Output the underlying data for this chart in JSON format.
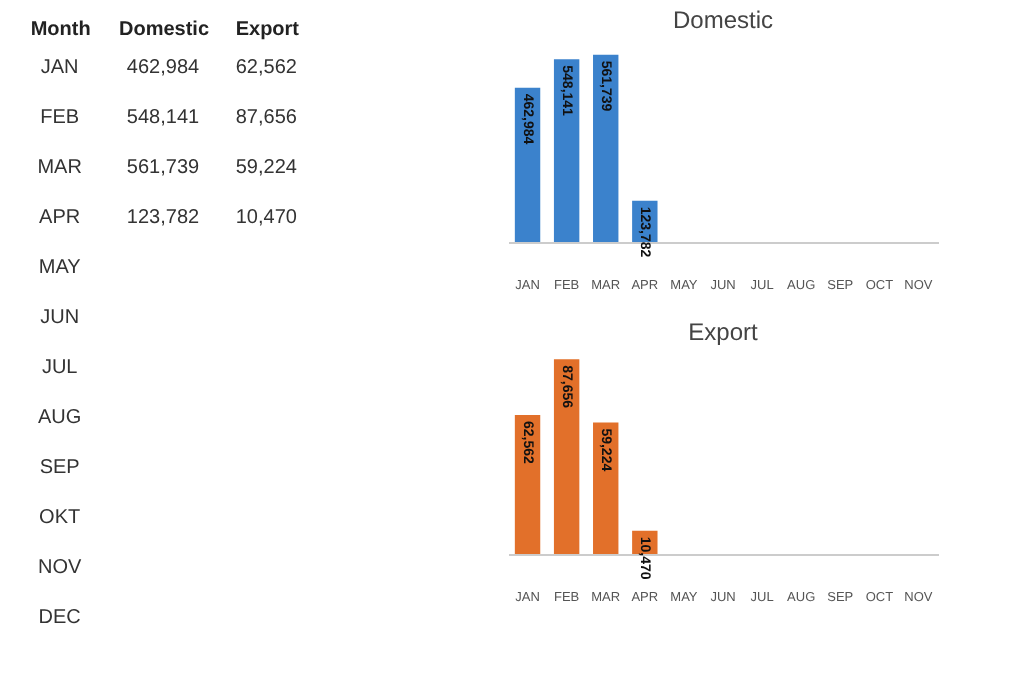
{
  "chart_data": [
    {
      "type": "other",
      "xlabel": "Month",
      "categories": [
        "JAN",
        "FEB",
        "MAR",
        "APR",
        "MAY",
        "JUN",
        "JUL",
        "AUG",
        "SEP",
        "OKT",
        "NOV",
        "DEC"
      ],
      "series": [
        {
          "name": "Domestic",
          "values": [
            462984,
            548141,
            561739,
            123782,
            null,
            null,
            null,
            null,
            null,
            null,
            null,
            null
          ],
          "value_labels": [
            "462,984",
            "548,141",
            "561,739",
            "123,782",
            null,
            null,
            null,
            null,
            null,
            null,
            null,
            null
          ]
        },
        {
          "name": "Export",
          "values": [
            62562,
            87656,
            59224,
            10470,
            null,
            null,
            null,
            null,
            null,
            null,
            null,
            null
          ],
          "value_labels": [
            "62,562",
            "87,656",
            "59,224",
            "10,470",
            null,
            null,
            null,
            null,
            null,
            null,
            null,
            null
          ]
        }
      ]
    },
    {
      "type": "bar",
      "title": "Domestic",
      "categories": [
        "JAN",
        "FEB",
        "MAR",
        "APR",
        "MAY",
        "JUN",
        "JUL",
        "AUG",
        "SEP",
        "OCT",
        "NOV"
      ],
      "series": [
        {
          "color": "#3b82cc",
          "values": [
            462984,
            548141,
            561739,
            123782,
            null,
            null,
            null,
            null,
            null,
            null,
            null
          ],
          "value_labels": [
            "462,984",
            "548,141",
            "561,739",
            "123,782",
            null,
            null,
            null,
            null,
            null,
            null,
            null
          ]
        }
      ]
    },
    {
      "type": "bar",
      "title": "Export",
      "categories": [
        "JAN",
        "FEB",
        "MAR",
        "APR",
        "MAY",
        "JUN",
        "JUL",
        "AUG",
        "SEP",
        "OCT",
        "NOV"
      ],
      "series": [
        {
          "color": "#e2702a",
          "values": [
            62562,
            87656,
            59224,
            10470,
            null,
            null,
            null,
            null,
            null,
            null,
            null
          ],
          "value_labels": [
            "62,562",
            "87,656",
            "59,224",
            "10,470",
            null,
            null,
            null,
            null,
            null,
            null,
            null
          ]
        }
      ]
    }
  ]
}
